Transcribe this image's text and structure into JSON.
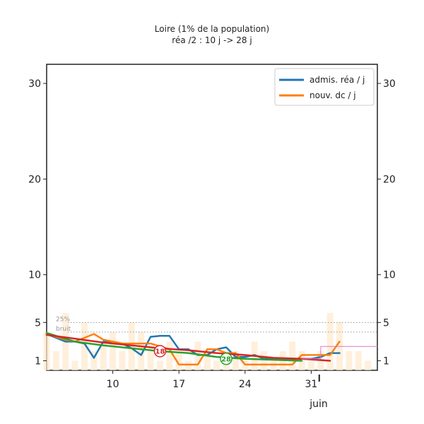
{
  "chart_data": {
    "type": "line",
    "title": "Loire (1% de la population)",
    "subtitle": "réa /2 : 10 j -> 28 j",
    "xlabel": "",
    "ylabel": "",
    "ylim": [
      0,
      32
    ],
    "yticks": [
      1,
      5,
      10,
      20,
      30
    ],
    "xticks": [
      {
        "day": 10,
        "label": "10"
      },
      {
        "day": 17,
        "label": "17"
      },
      {
        "day": 24,
        "label": "24"
      },
      {
        "day": 31,
        "label": "31"
      }
    ],
    "month_label": "juin",
    "xlim": [
      3,
      38
    ],
    "grid": false,
    "legend_position": "top-right",
    "reference_lines": [
      {
        "label": "25%",
        "value": 5.0
      },
      {
        "label": "bruit",
        "value": 4.0
      }
    ],
    "bars": {
      "days": [
        3,
        4,
        5,
        6,
        7,
        8,
        9,
        10,
        11,
        12,
        13,
        14,
        15,
        16,
        17,
        18,
        19,
        20,
        21,
        22,
        23,
        24,
        25,
        26,
        27,
        28,
        29,
        30,
        31,
        32,
        33,
        34,
        35,
        36,
        37
      ],
      "values": [
        4,
        2,
        6,
        1,
        5,
        2,
        3,
        4,
        2,
        5,
        4,
        2,
        1,
        3,
        2,
        1,
        3,
        2,
        1,
        2,
        2,
        1,
        3,
        2,
        1,
        2,
        3,
        2,
        1,
        2,
        6,
        5,
        2,
        2,
        1
      ]
    },
    "series": [
      {
        "name": "admis. réa / j",
        "color": "#1f77b4",
        "x": [
          3,
          5,
          6,
          7,
          8,
          9,
          10,
          11,
          12,
          13,
          14,
          15,
          16,
          17,
          18,
          19,
          20,
          21,
          22,
          23,
          24,
          25,
          26,
          27,
          28,
          29,
          30,
          31,
          32,
          33,
          34
        ],
        "y": [
          3.8,
          3.0,
          3.0,
          2.8,
          1.3,
          3.0,
          3.0,
          2.8,
          2.3,
          1.6,
          3.5,
          3.6,
          3.6,
          2.2,
          2.2,
          1.6,
          1.6,
          2.2,
          2.4,
          1.4,
          1.4,
          1.6,
          1.2,
          1.2,
          1.2,
          1.2,
          1.2,
          1.2,
          1.4,
          1.8,
          1.8
        ]
      },
      {
        "name": "nouv. dc / j",
        "color": "#ff7f0e",
        "x": [
          3,
          5,
          6,
          7,
          8,
          9,
          10,
          11,
          12,
          13,
          14,
          15,
          16,
          17,
          18,
          19,
          20,
          21,
          22,
          23,
          24,
          25,
          26,
          27,
          28,
          29,
          30,
          31,
          32,
          33,
          34
        ],
        "y": [
          3.8,
          3.2,
          3.0,
          3.4,
          3.8,
          3.2,
          3.0,
          2.8,
          2.8,
          2.8,
          2.8,
          2.5,
          2.2,
          0.6,
          0.6,
          0.6,
          2.2,
          2.2,
          1.8,
          1.8,
          0.6,
          0.6,
          0.6,
          0.6,
          0.6,
          0.6,
          1.6,
          1.6,
          1.6,
          1.6,
          3.0
        ]
      },
      {
        "color": "#2ca02c",
        "x": [
          3,
          6,
          9,
          12,
          15,
          18,
          21,
          24,
          27,
          30
        ],
        "y": [
          3.9,
          3.0,
          2.6,
          2.3,
          2.0,
          1.8,
          1.4,
          1.2,
          1.1,
          1.0
        ]
      },
      {
        "color": "#d62728",
        "x": [
          3,
          6,
          9,
          12,
          15,
          18,
          21,
          24,
          27,
          30,
          33
        ],
        "y": [
          3.7,
          3.3,
          2.9,
          2.6,
          2.3,
          2.1,
          1.8,
          1.6,
          1.3,
          1.2,
          1.0
        ]
      },
      {
        "color": "#e377c2",
        "x": [
          30,
          32,
          32,
          38
        ],
        "y": [
          1.2,
          1.2,
          2.5,
          2.5
        ]
      }
    ],
    "badges": [
      {
        "label": "18",
        "x": 15,
        "y": 2.0,
        "color": "#d62728"
      },
      {
        "label": "28",
        "x": 22,
        "y": 1.2,
        "color": "#2ca02c"
      }
    ]
  }
}
